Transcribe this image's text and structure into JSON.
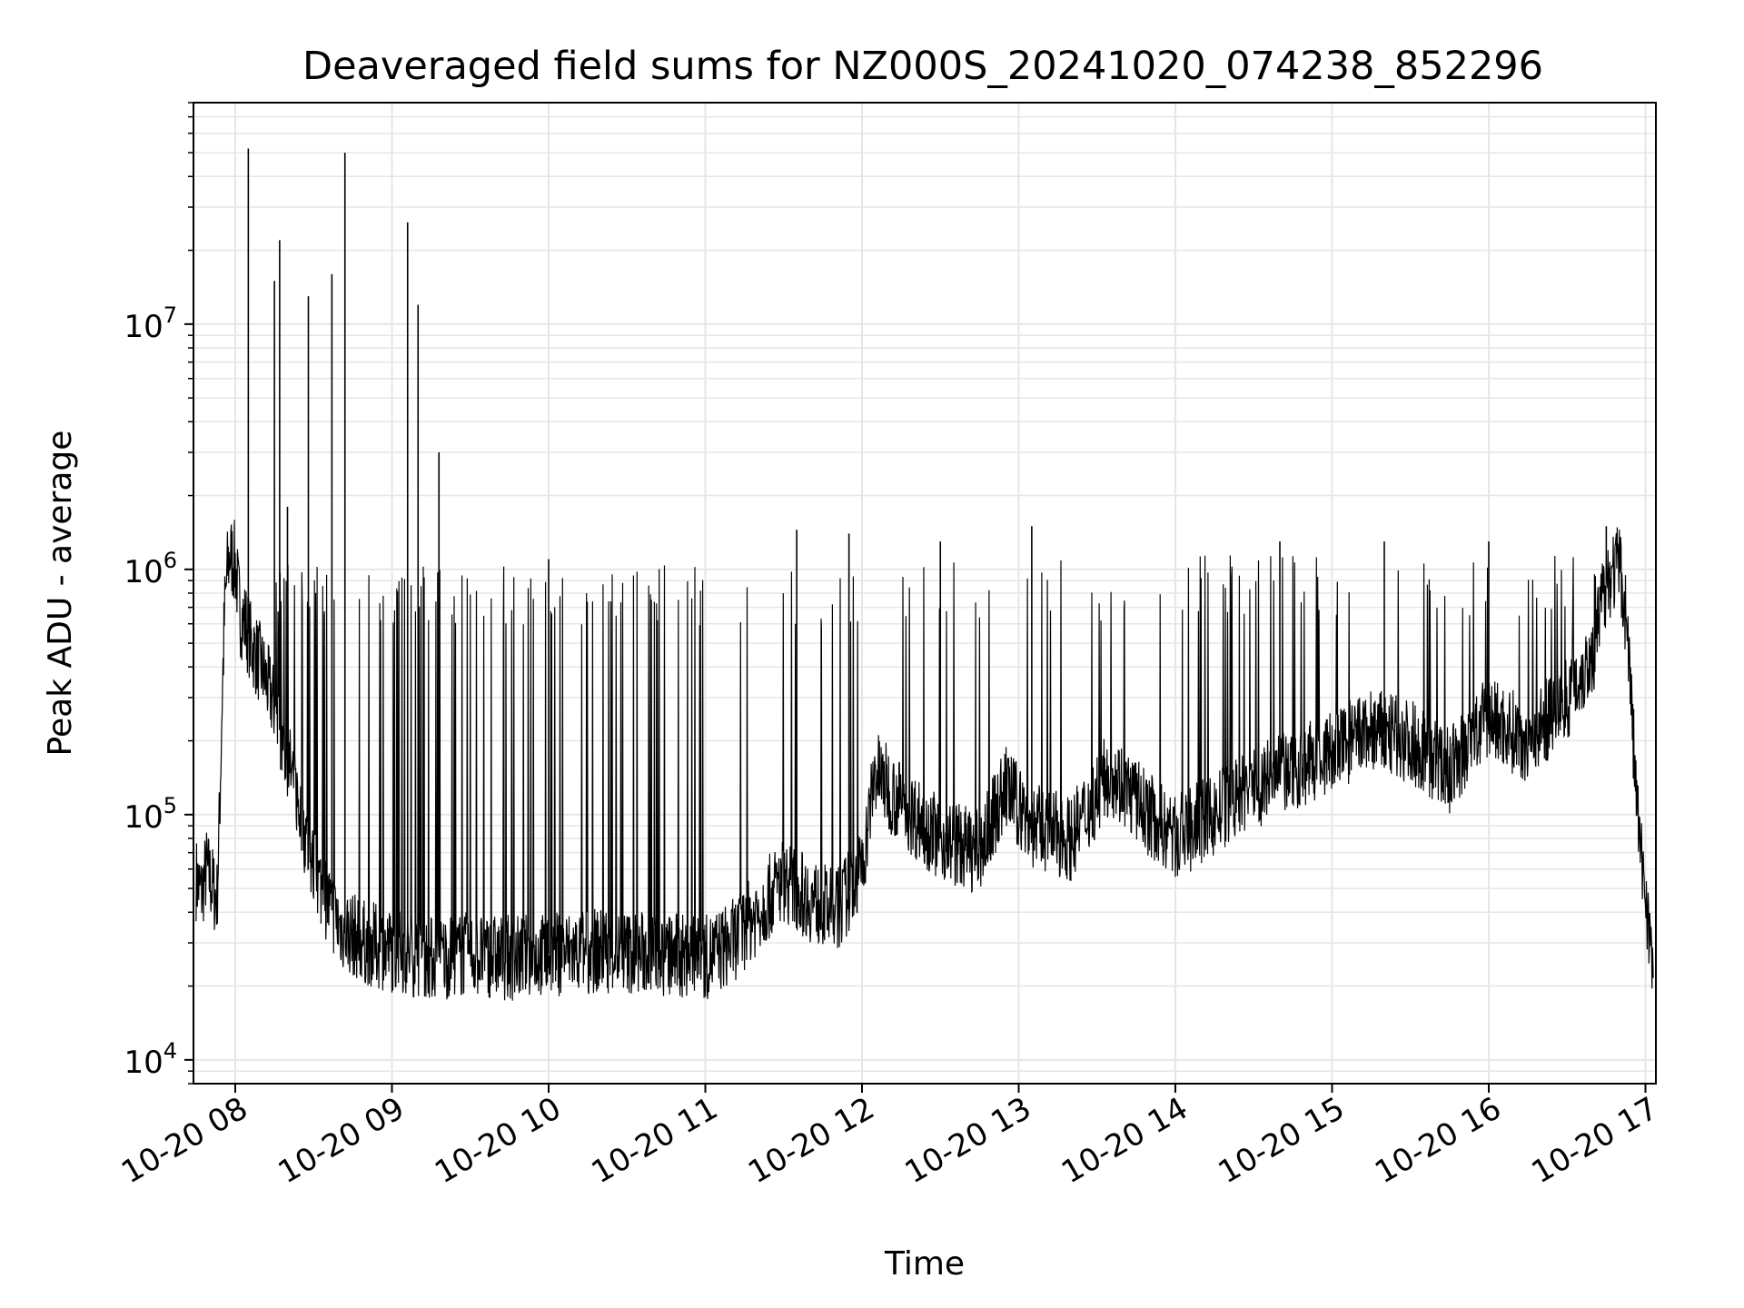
{
  "chart_data": {
    "type": "line",
    "title": "Deaveraged field sums for NZ000S_20241020_074238_852296",
    "xlabel": "Time",
    "ylabel": "Peak ADU - average",
    "yscale": "log",
    "xlim": [
      "2024-10-20T07:44",
      "2024-10-20T17:04"
    ],
    "ylim": [
      8000,
      80000000
    ],
    "grid": true,
    "line_color": "#000000",
    "x_ticks": [
      {
        "value": "2024-10-20T08:00",
        "label": "10-20 08"
      },
      {
        "value": "2024-10-20T09:00",
        "label": "10-20 09"
      },
      {
        "value": "2024-10-20T10:00",
        "label": "10-20 10"
      },
      {
        "value": "2024-10-20T11:00",
        "label": "10-20 11"
      },
      {
        "value": "2024-10-20T12:00",
        "label": "10-20 12"
      },
      {
        "value": "2024-10-20T13:00",
        "label": "10-20 13"
      },
      {
        "value": "2024-10-20T14:00",
        "label": "10-20 14"
      },
      {
        "value": "2024-10-20T15:00",
        "label": "10-20 15"
      },
      {
        "value": "2024-10-20T16:00",
        "label": "10-20 16"
      },
      {
        "value": "2024-10-20T17:00",
        "label": "10-20 17"
      }
    ],
    "y_ticks": [
      {
        "value": 10000,
        "base": "10",
        "exp": "4"
      },
      {
        "value": 100000,
        "base": "10",
        "exp": "5"
      },
      {
        "value": 1000000,
        "base": "10",
        "exp": "6"
      },
      {
        "value": 10000000,
        "base": "10",
        "exp": "7"
      }
    ],
    "series": [
      {
        "points": [
          [
            "2024-10-20T07:45",
            55000
          ],
          [
            "2024-10-20T07:47",
            48000
          ],
          [
            "2024-10-20T07:49",
            60000
          ],
          [
            "2024-10-20T07:51",
            52000
          ],
          [
            "2024-10-20T07:53",
            45000
          ],
          [
            "2024-10-20T07:54",
            100000
          ],
          [
            "2024-10-20T07:55",
            300000
          ],
          [
            "2024-10-20T07:56",
            700000
          ],
          [
            "2024-10-20T07:57",
            1000000
          ],
          [
            "2024-10-20T07:58",
            1150000
          ],
          [
            "2024-10-20T08:00",
            1050000
          ],
          [
            "2024-10-20T08:02",
            650000
          ],
          [
            "2024-10-20T08:04",
            600000
          ],
          [
            "2024-10-20T08:06",
            500000
          ],
          [
            "2024-10-20T08:10",
            400000
          ],
          [
            "2024-10-20T08:14",
            300000
          ],
          [
            "2024-10-20T08:18",
            200000
          ],
          [
            "2024-10-20T08:22",
            140000
          ],
          [
            "2024-10-20T08:26",
            90000
          ],
          [
            "2024-10-20T08:30",
            60000
          ],
          [
            "2024-10-20T08:35",
            45000
          ],
          [
            "2024-10-20T08:40",
            35000
          ],
          [
            "2024-10-20T08:50",
            30000
          ],
          [
            "2024-10-20T09:00",
            28000
          ],
          [
            "2024-10-20T09:15",
            26000
          ],
          [
            "2024-10-20T09:30",
            27000
          ],
          [
            "2024-10-20T09:45",
            26000
          ],
          [
            "2024-10-20T10:00",
            27000
          ],
          [
            "2024-10-20T10:20",
            28000
          ],
          [
            "2024-10-20T10:40",
            27000
          ],
          [
            "2024-10-20T11:00",
            26000
          ],
          [
            "2024-10-20T11:10",
            30000
          ],
          [
            "2024-10-20T11:20",
            40000
          ],
          [
            "2024-10-20T11:30",
            55000
          ],
          [
            "2024-10-20T11:40",
            45000
          ],
          [
            "2024-10-20T11:50",
            40000
          ],
          [
            "2024-10-20T12:00",
            60000
          ],
          [
            "2024-10-20T12:05",
            150000
          ],
          [
            "2024-10-20T12:15",
            110000
          ],
          [
            "2024-10-20T12:30",
            80000
          ],
          [
            "2024-10-20T12:45",
            70000
          ],
          [
            "2024-10-20T12:55",
            130000
          ],
          [
            "2024-10-20T13:05",
            90000
          ],
          [
            "2024-10-20T13:20",
            80000
          ],
          [
            "2024-10-20T13:35",
            150000
          ],
          [
            "2024-10-20T13:50",
            100000
          ],
          [
            "2024-10-20T14:00",
            80000
          ],
          [
            "2024-10-20T14:15",
            100000
          ],
          [
            "2024-10-20T14:30",
            130000
          ],
          [
            "2024-10-20T14:45",
            150000
          ],
          [
            "2024-10-20T15:00",
            180000
          ],
          [
            "2024-10-20T15:15",
            220000
          ],
          [
            "2024-10-20T15:30",
            200000
          ],
          [
            "2024-10-20T15:45",
            150000
          ],
          [
            "2024-10-20T16:00",
            250000
          ],
          [
            "2024-10-20T16:15",
            200000
          ],
          [
            "2024-10-20T16:30",
            300000
          ],
          [
            "2024-10-20T16:40",
            450000
          ],
          [
            "2024-10-20T16:45",
            900000
          ],
          [
            "2024-10-20T16:50",
            1050000
          ],
          [
            "2024-10-20T16:53",
            600000
          ],
          [
            "2024-10-20T16:56",
            150000
          ],
          [
            "2024-10-20T16:58",
            70000
          ],
          [
            "2024-10-20T17:00",
            50000
          ],
          [
            "2024-10-20T17:02",
            30000
          ],
          [
            "2024-10-20T17:03",
            18000
          ]
        ],
        "spikes": [
          [
            "2024-10-20T08:05",
            52000000
          ],
          [
            "2024-10-20T08:15",
            15000000
          ],
          [
            "2024-10-20T08:17",
            22000000
          ],
          [
            "2024-10-20T08:28",
            13000000
          ],
          [
            "2024-10-20T08:37",
            16000000
          ],
          [
            "2024-10-20T08:42",
            50000000
          ],
          [
            "2024-10-20T09:06",
            26000000
          ],
          [
            "2024-10-20T09:10",
            12000000
          ],
          [
            "2024-10-20T09:18",
            3000000
          ],
          [
            "2024-10-20T08:20",
            1800000
          ],
          [
            "2024-10-20T10:00",
            1100000
          ],
          [
            "2024-10-20T11:35",
            1450000
          ],
          [
            "2024-10-20T11:55",
            1400000
          ],
          [
            "2024-10-20T12:30",
            1300000
          ],
          [
            "2024-10-20T13:05",
            1500000
          ],
          [
            "2024-10-20T14:40",
            1300000
          ],
          [
            "2024-10-20T15:20",
            1300000
          ],
          [
            "2024-10-20T16:00",
            1300000
          ],
          [
            "2024-10-20T16:45",
            1500000
          ]
        ],
        "band": [
          {
            "start": "2024-10-20T08:15",
            "end": "2024-10-20T11:00",
            "top": 1050000,
            "density": 3
          },
          {
            "start": "2024-10-20T11:00",
            "end": "2024-10-20T12:00",
            "top": 1000000,
            "density": 1
          },
          {
            "start": "2024-10-20T12:10",
            "end": "2024-10-20T14:00",
            "top": 1100000,
            "density": 1
          },
          {
            "start": "2024-10-20T14:00",
            "end": "2024-10-20T16:45",
            "top": 1150000,
            "density": 2
          }
        ]
      }
    ]
  }
}
